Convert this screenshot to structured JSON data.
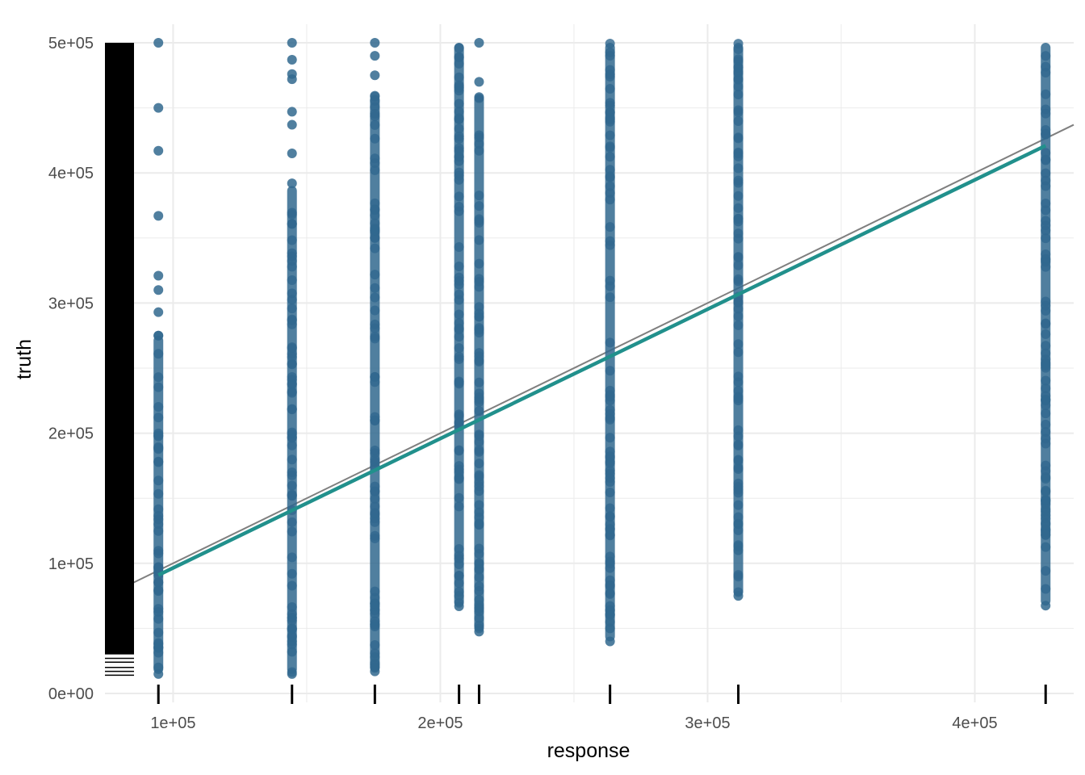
{
  "chart_data": {
    "type": "scatter",
    "title": "",
    "xlabel": "response",
    "ylabel": "truth",
    "xlim": [
      74500,
      437000
    ],
    "ylim": [
      0,
      500001
    ],
    "x_ticks": [
      {
        "value": 100000,
        "label": "1e+05"
      },
      {
        "value": 200000,
        "label": "2e+05"
      },
      {
        "value": 300000,
        "label": "3e+05"
      },
      {
        "value": 400000,
        "label": "4e+05"
      }
    ],
    "y_ticks": [
      {
        "value": 0,
        "label": "0e+00"
      },
      {
        "value": 100000,
        "label": "1e+05"
      },
      {
        "value": 200000,
        "label": "2e+05"
      },
      {
        "value": 300000,
        "label": "3e+05"
      },
      {
        "value": 400000,
        "label": "4e+05"
      },
      {
        "value": 500000,
        "label": "5e+05"
      }
    ],
    "grid": true,
    "legend": "none",
    "colors": {
      "points": "#31688e",
      "fit_line": "#21908c",
      "identity_line": "#7f7f7f",
      "rug": "#000000",
      "grid": "#ebebeb"
    },
    "series": [
      {
        "x": 94500,
        "y_min": 15000,
        "y_max": 500001,
        "dense_to": 275000,
        "sparse": [
          15000,
          20000,
          275000,
          293000,
          310000,
          321000,
          367000,
          417000,
          450000,
          500001
        ]
      },
      {
        "x": 144500,
        "y_min": 15000,
        "y_max": 500001,
        "dense_to": 390000,
        "sparse": [
          15000,
          32000,
          40000,
          392000,
          415000,
          437000,
          447000,
          472000,
          476000,
          487000,
          500001
        ]
      },
      {
        "x": 175500,
        "y_min": 17000,
        "y_max": 500001,
        "dense_to": 460000,
        "sparse": [
          17000,
          22000,
          28000,
          475000,
          490000,
          500001
        ]
      },
      {
        "x": 207000,
        "y_min": 67000,
        "y_max": 500001,
        "dense_to": 500001,
        "sparse": [
          67000,
          75000
        ]
      },
      {
        "x": 214500,
        "y_min": 47500,
        "y_max": 500001,
        "dense_to": 460000,
        "sparse": [
          47500,
          68000,
          72000,
          470000,
          500001
        ]
      },
      {
        "x": 263500,
        "y_min": 40000,
        "y_max": 500001,
        "dense_to": 500001,
        "sparse": [
          40000,
          50000,
          55000
        ]
      },
      {
        "x": 311500,
        "y_min": 75000,
        "y_max": 500001,
        "dense_to": 500001,
        "sparse": [
          75000,
          110000,
          113000,
          130000
        ]
      },
      {
        "x": 426500,
        "y_min": 67500,
        "y_max": 500001,
        "dense_to": 500001,
        "sparse": [
          67500,
          112500,
          122000,
          130000,
          137000,
          140000,
          155000,
          165000
        ]
      }
    ],
    "fit_line": {
      "x": [
        94500,
        426500
      ],
      "y": [
        91000,
        421000
      ]
    },
    "identity_line": {
      "x": [
        83500,
        437000
      ],
      "y": [
        83500,
        437000
      ]
    },
    "y_rug": {
      "y_min": 14000,
      "y_max": 500001,
      "dense_from": 30000,
      "sparse": [
        14000,
        17000,
        20000,
        24000,
        27000
      ]
    },
    "x_rug": [
      94500,
      144500,
      175500,
      207000,
      214500,
      263500,
      311500,
      426500
    ]
  }
}
